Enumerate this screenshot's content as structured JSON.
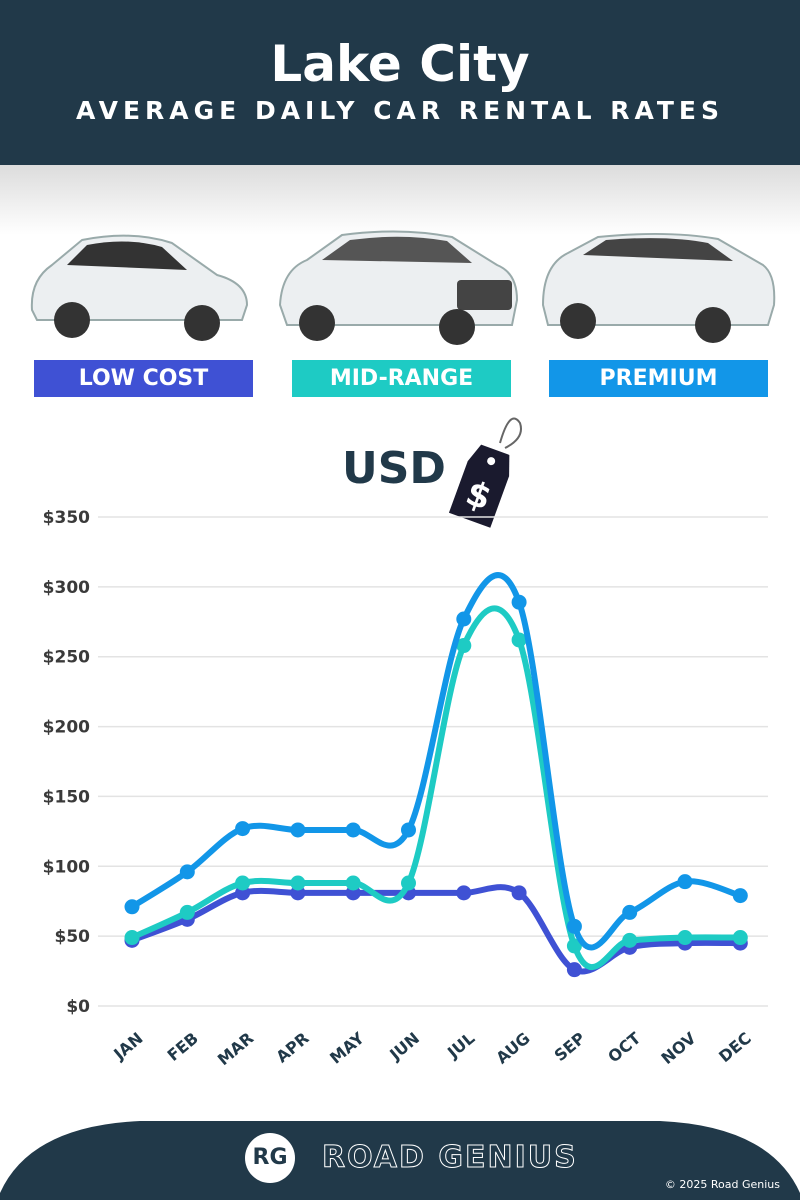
{
  "header": {
    "title": "Lake City",
    "subtitle": "AVERAGE DAILY CAR RENTAL RATES"
  },
  "categories": [
    {
      "label": "LOW COST",
      "color": "#3f51d4"
    },
    {
      "label": "MID-RANGE",
      "color": "#1ecbc4"
    },
    {
      "label": "PREMIUM",
      "color": "#1296e8"
    }
  ],
  "currency": {
    "label": "USD",
    "tag_symbol": "$"
  },
  "chart_data": {
    "type": "line",
    "x": [
      "JAN",
      "FEB",
      "MAR",
      "APR",
      "MAY",
      "JUN",
      "JUL",
      "AUG",
      "SEP",
      "OCT",
      "NOV",
      "DEC"
    ],
    "ylim": [
      0,
      350
    ],
    "yticks": [
      "$0",
      "$50",
      "$100",
      "$150",
      "$200",
      "$250",
      "$300",
      "$350"
    ],
    "grid": true,
    "series": [
      {
        "name": "LOW COST",
        "color": "#3f51d4",
        "values": [
          47,
          62,
          81,
          81,
          81,
          81,
          81,
          81,
          26,
          42,
          45,
          45
        ]
      },
      {
        "name": "MID-RANGE",
        "color": "#1ecbc4",
        "values": [
          49,
          67,
          88,
          88,
          88,
          88,
          258,
          262,
          43,
          47,
          49,
          49
        ]
      },
      {
        "name": "PREMIUM",
        "color": "#1296e8",
        "values": [
          71,
          96,
          127,
          126,
          126,
          126,
          277,
          289,
          57,
          67,
          89,
          79
        ]
      }
    ]
  },
  "footer": {
    "logo": "RG",
    "brand": "ROAD GENIUS",
    "copyright": "© 2025 Road Genius"
  }
}
